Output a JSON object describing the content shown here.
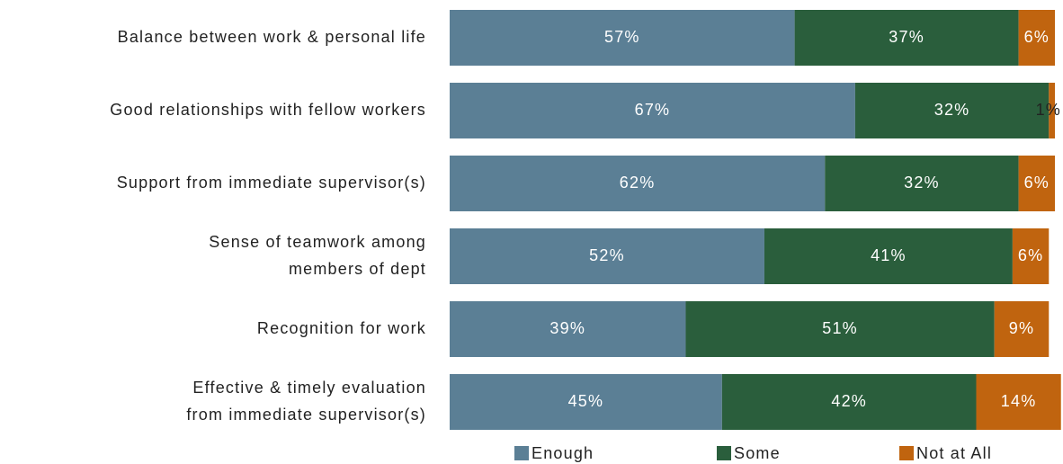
{
  "chart_data": {
    "type": "stacked-bar-horizontal",
    "categories": [
      [
        "Balance between work & personal life"
      ],
      [
        "Good relationships with fellow workers"
      ],
      [
        "Support from immediate supervisor(s)"
      ],
      [
        "Sense of teamwork among",
        "members of dept"
      ],
      [
        "Recognition for work"
      ],
      [
        "Effective & timely evaluation",
        "from immediate supervisor(s)"
      ]
    ],
    "series": [
      {
        "name": "Enough",
        "color": "#5b7f95",
        "values": [
          57,
          67,
          62,
          52,
          39,
          45
        ],
        "value_labels": [
          "57%",
          "67%",
          "62%",
          "52%",
          "39%",
          "45%"
        ]
      },
      {
        "name": "Some",
        "color": "#2a5e3c",
        "values": [
          37,
          32,
          32,
          41,
          51,
          42
        ],
        "value_labels": [
          "37%",
          "32%",
          "32%",
          "41%",
          "51%",
          "42%"
        ]
      },
      {
        "name": "Not at All",
        "color": "#c0640f",
        "values": [
          6,
          1,
          6,
          6,
          9,
          14
        ],
        "value_labels": [
          "6%",
          "1%",
          "6%",
          "6%",
          "9%",
          "14%"
        ]
      }
    ],
    "xlim": [
      0,
      100
    ],
    "legend": "bottom"
  }
}
